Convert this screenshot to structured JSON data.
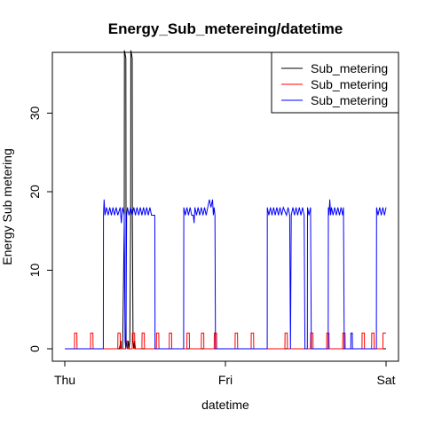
{
  "chart_data": {
    "type": "line",
    "title": "Energy_Sub_metereing/datetime",
    "xlabel": "datetime",
    "ylabel": "Energy Sub metering",
    "xlim": [
      0,
      2
    ],
    "ylim": [
      0,
      38
    ],
    "x_ticks": [
      {
        "value": 0,
        "label": "Thu"
      },
      {
        "value": 1,
        "label": "Fri"
      },
      {
        "value": 2,
        "label": "Sat"
      }
    ],
    "y_ticks": [
      0,
      10,
      20,
      30
    ],
    "legend_position": "top-right",
    "grid": false,
    "series": [
      {
        "name": "Sub_metering",
        "color": "#000000",
        "points": [
          [
            0.0,
            0
          ],
          [
            0.34,
            0
          ],
          [
            0.35,
            1
          ],
          [
            0.351,
            0
          ],
          [
            0.36,
            0
          ],
          [
            0.37,
            16
          ],
          [
            0.371,
            38
          ],
          [
            0.38,
            37
          ],
          [
            0.381,
            16
          ],
          [
            0.382,
            1
          ],
          [
            0.39,
            0
          ],
          [
            0.395,
            1
          ],
          [
            0.4,
            0
          ],
          [
            0.405,
            1
          ],
          [
            0.41,
            16
          ],
          [
            0.411,
            38
          ],
          [
            0.42,
            37
          ],
          [
            0.421,
            16
          ],
          [
            0.425,
            1
          ],
          [
            0.43,
            0
          ],
          [
            0.435,
            1
          ],
          [
            0.44,
            0
          ],
          [
            2.0,
            0
          ]
        ]
      },
      {
        "name": "Sub_metering",
        "color": "#ff0000",
        "points": [
          [
            0.0,
            0
          ],
          [
            0.06,
            0
          ],
          [
            0.061,
            2
          ],
          [
            0.075,
            2
          ],
          [
            0.076,
            0
          ],
          [
            0.16,
            0
          ],
          [
            0.161,
            2
          ],
          [
            0.175,
            2
          ],
          [
            0.176,
            0
          ],
          [
            0.33,
            0
          ],
          [
            0.331,
            2
          ],
          [
            0.345,
            2
          ],
          [
            0.346,
            0
          ],
          [
            0.38,
            0
          ],
          [
            0.381,
            1
          ],
          [
            0.39,
            1
          ],
          [
            0.391,
            0
          ],
          [
            0.42,
            0
          ],
          [
            0.421,
            2
          ],
          [
            0.435,
            2
          ],
          [
            0.436,
            0
          ],
          [
            0.48,
            0
          ],
          [
            0.481,
            2
          ],
          [
            0.495,
            2
          ],
          [
            0.496,
            0
          ],
          [
            0.57,
            0
          ],
          [
            0.571,
            2
          ],
          [
            0.585,
            2
          ],
          [
            0.586,
            0
          ],
          [
            0.65,
            0
          ],
          [
            0.651,
            2
          ],
          [
            0.665,
            2
          ],
          [
            0.666,
            0
          ],
          [
            0.76,
            0
          ],
          [
            0.761,
            2
          ],
          [
            0.775,
            2
          ],
          [
            0.776,
            0
          ],
          [
            0.85,
            0
          ],
          [
            0.851,
            2
          ],
          [
            0.865,
            2
          ],
          [
            0.866,
            0
          ],
          [
            0.93,
            0
          ],
          [
            0.931,
            2
          ],
          [
            0.945,
            2
          ],
          [
            0.946,
            0
          ],
          [
            1.06,
            0
          ],
          [
            1.061,
            2
          ],
          [
            1.075,
            2
          ],
          [
            1.076,
            0
          ],
          [
            1.16,
            0
          ],
          [
            1.161,
            2
          ],
          [
            1.175,
            2
          ],
          [
            1.176,
            0
          ],
          [
            1.37,
            0
          ],
          [
            1.371,
            2
          ],
          [
            1.385,
            2
          ],
          [
            1.386,
            0
          ],
          [
            1.53,
            0
          ],
          [
            1.531,
            2
          ],
          [
            1.545,
            2
          ],
          [
            1.546,
            0
          ],
          [
            1.63,
            0
          ],
          [
            1.631,
            2
          ],
          [
            1.645,
            2
          ],
          [
            1.646,
            0
          ],
          [
            1.73,
            0
          ],
          [
            1.731,
            2
          ],
          [
            1.745,
            2
          ],
          [
            1.746,
            0
          ],
          [
            1.85,
            0
          ],
          [
            1.851,
            2
          ],
          [
            1.865,
            2
          ],
          [
            1.866,
            0
          ],
          [
            1.91,
            0
          ],
          [
            1.911,
            2
          ],
          [
            1.925,
            2
          ],
          [
            1.926,
            0
          ],
          [
            1.98,
            0
          ],
          [
            1.981,
            2
          ],
          [
            2.0,
            2
          ]
        ]
      },
      {
        "name": "Sub_metering",
        "color": "#0000ff",
        "points": [
          [
            0.0,
            0
          ],
          [
            0.24,
            0
          ],
          [
            0.241,
            17
          ],
          [
            0.245,
            19
          ],
          [
            0.25,
            17
          ],
          [
            0.26,
            18
          ],
          [
            0.27,
            17
          ],
          [
            0.28,
            18
          ],
          [
            0.29,
            17
          ],
          [
            0.3,
            18
          ],
          [
            0.31,
            17
          ],
          [
            0.32,
            18
          ],
          [
            0.33,
            17
          ],
          [
            0.345,
            18
          ],
          [
            0.352,
            16
          ],
          [
            0.355,
            17
          ],
          [
            0.36,
            18
          ],
          [
            0.37,
            17
          ],
          [
            0.375,
            1
          ],
          [
            0.38,
            0
          ],
          [
            0.385,
            17
          ],
          [
            0.39,
            18
          ],
          [
            0.4,
            17
          ],
          [
            0.41,
            18
          ],
          [
            0.42,
            17
          ],
          [
            0.43,
            18
          ],
          [
            0.44,
            17
          ],
          [
            0.45,
            18
          ],
          [
            0.46,
            17
          ],
          [
            0.47,
            18
          ],
          [
            0.48,
            17
          ],
          [
            0.49,
            18
          ],
          [
            0.5,
            17
          ],
          [
            0.51,
            18
          ],
          [
            0.52,
            17
          ],
          [
            0.53,
            18
          ],
          [
            0.54,
            17
          ],
          [
            0.56,
            17
          ],
          [
            0.561,
            15
          ],
          [
            0.562,
            0
          ],
          [
            0.74,
            0
          ],
          [
            0.741,
            18
          ],
          [
            0.75,
            17
          ],
          [
            0.76,
            18
          ],
          [
            0.77,
            17
          ],
          [
            0.78,
            18
          ],
          [
            0.79,
            17
          ],
          [
            0.8,
            17
          ],
          [
            0.805,
            16
          ],
          [
            0.81,
            18
          ],
          [
            0.82,
            17
          ],
          [
            0.83,
            18
          ],
          [
            0.84,
            17
          ],
          [
            0.85,
            18
          ],
          [
            0.86,
            17
          ],
          [
            0.87,
            18
          ],
          [
            0.88,
            17
          ],
          [
            0.89,
            18
          ],
          [
            0.9,
            19
          ],
          [
            0.91,
            18
          ],
          [
            0.92,
            19
          ],
          [
            0.925,
            17
          ],
          [
            0.93,
            18
          ],
          [
            0.935,
            17
          ],
          [
            0.938,
            0
          ],
          [
            1.26,
            0
          ],
          [
            1.261,
            18
          ],
          [
            1.27,
            17
          ],
          [
            1.28,
            18
          ],
          [
            1.29,
            17
          ],
          [
            1.3,
            18
          ],
          [
            1.31,
            17
          ],
          [
            1.32,
            18
          ],
          [
            1.33,
            17
          ],
          [
            1.34,
            18
          ],
          [
            1.35,
            17
          ],
          [
            1.36,
            18
          ],
          [
            1.38,
            17
          ],
          [
            1.39,
            18
          ],
          [
            1.4,
            17
          ],
          [
            1.405,
            0
          ],
          [
            1.41,
            17
          ],
          [
            1.42,
            18
          ],
          [
            1.43,
            17
          ],
          [
            1.44,
            18
          ],
          [
            1.45,
            17
          ],
          [
            1.46,
            18
          ],
          [
            1.47,
            17
          ],
          [
            1.48,
            18
          ],
          [
            1.49,
            17
          ],
          [
            1.495,
            0
          ],
          [
            1.51,
            0
          ],
          [
            1.511,
            18
          ],
          [
            1.52,
            17
          ],
          [
            1.53,
            18
          ],
          [
            1.535,
            0
          ],
          [
            1.55,
            0
          ],
          [
            1.64,
            0
          ],
          [
            1.641,
            18
          ],
          [
            1.645,
            17
          ],
          [
            1.65,
            19
          ],
          [
            1.655,
            17
          ],
          [
            1.66,
            18
          ],
          [
            1.67,
            17
          ],
          [
            1.68,
            18
          ],
          [
            1.69,
            17
          ],
          [
            1.7,
            18
          ],
          [
            1.71,
            17
          ],
          [
            1.72,
            18
          ],
          [
            1.73,
            17
          ],
          [
            1.735,
            18
          ],
          [
            1.74,
            0
          ],
          [
            1.76,
            0
          ],
          [
            1.78,
            0
          ],
          [
            1.781,
            2
          ],
          [
            1.79,
            2
          ],
          [
            1.791,
            0
          ],
          [
            1.94,
            0
          ],
          [
            1.941,
            18
          ],
          [
            1.95,
            17
          ],
          [
            1.96,
            18
          ],
          [
            1.97,
            17
          ],
          [
            1.98,
            18
          ],
          [
            1.99,
            17
          ],
          [
            2.0,
            18
          ]
        ]
      }
    ]
  }
}
